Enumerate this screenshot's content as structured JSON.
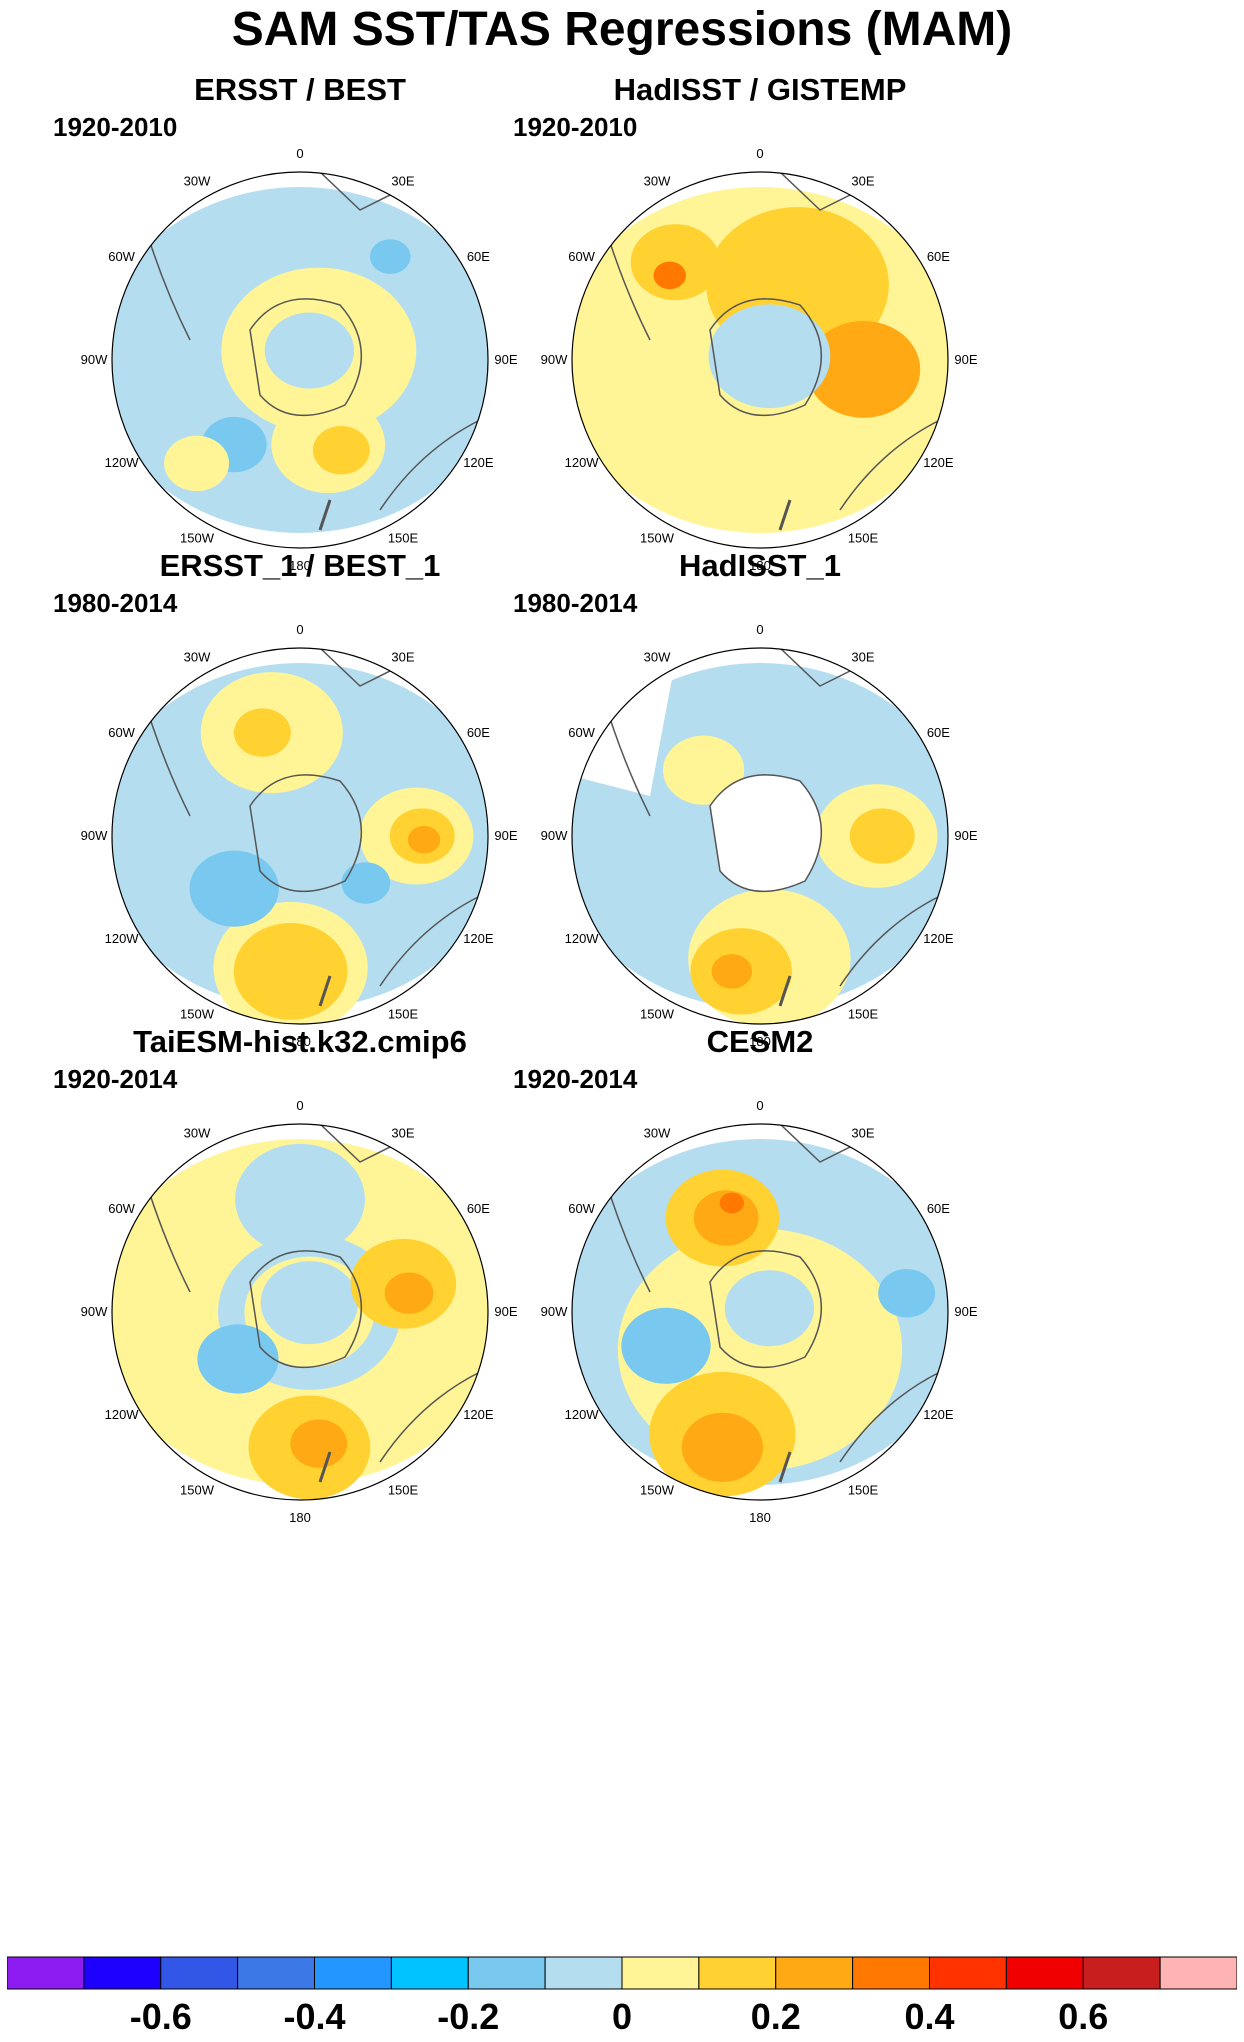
{
  "title": "SAM SST/TAS Regressions (MAM)",
  "longitude_labels": [
    "0",
    "30E",
    "60E",
    "90E",
    "120E",
    "150E",
    "180",
    "150W",
    "120W",
    "90W",
    "60W",
    "30W"
  ],
  "panels": [
    {
      "title": "ERSST / BEST",
      "period": "1920-2010",
      "missing_ocean": false,
      "missing_antarctica": false
    },
    {
      "title": "HadISST / GISTEMP",
      "period": "1920-2010",
      "missing_ocean": false,
      "missing_antarctica": false
    },
    {
      "title": "ERSST_1 / BEST_1",
      "period": "1980-2014",
      "missing_ocean": false,
      "missing_antarctica": false
    },
    {
      "title": "HadISST_1",
      "period": "1980-2014",
      "missing_ocean": true,
      "missing_antarctica": true
    },
    {
      "title": "TaiESM-hist.k32.cmip6",
      "period": "1920-2014",
      "missing_ocean": false,
      "missing_antarctica": false
    },
    {
      "title": "CESM2",
      "period": "1920-2014",
      "missing_ocean": false,
      "missing_antarctica": false
    }
  ],
  "colorbar": {
    "colors": [
      "#8c1cf0",
      "#1e00ff",
      "#3256e6",
      "#3c78e6",
      "#2396ff",
      "#00c3ff",
      "#78c8f0",
      "#b4def0",
      "#fff596",
      "#ffd232",
      "#ffaa14",
      "#ff7800",
      "#ff3200",
      "#f00000",
      "#c81e1e",
      "#ffb4b4"
    ],
    "tick_labels": [
      "-0.6",
      "-0.4",
      "-0.2",
      "0",
      "0.2",
      "0.4",
      "0.6"
    ],
    "tick_values": [
      -0.6,
      -0.4,
      -0.2,
      0,
      0.2,
      0.4,
      0.6
    ],
    "levels": [
      -0.7,
      -0.6,
      -0.5,
      -0.4,
      -0.3,
      -0.2,
      -0.1,
      0,
      0.1,
      0.2,
      0.3,
      0.4,
      0.5,
      0.6,
      0.7
    ]
  }
}
